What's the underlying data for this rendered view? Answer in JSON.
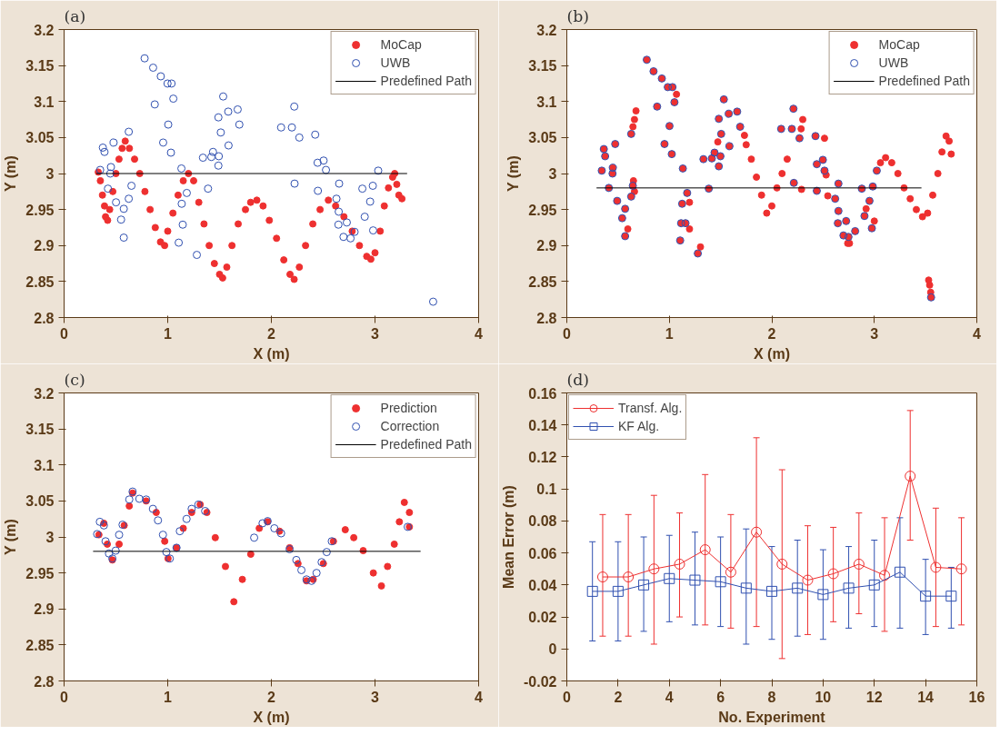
{
  "chart_data": [
    {
      "type": "scatter",
      "title": "(a)",
      "xlabel": "X (m)",
      "ylabel": "Y (m)",
      "xlim": [
        0,
        4
      ],
      "ylim": [
        2.8,
        3.2
      ],
      "xticks": [
        0,
        1,
        2,
        3,
        4
      ],
      "yticks": [
        2.8,
        2.85,
        2.9,
        2.95,
        3,
        3.05,
        3.1,
        3.15,
        3.2
      ],
      "grid": false,
      "legend": "top right",
      "series": [
        {
          "name": "MoCap",
          "color": "#ee3030",
          "marker": "circle",
          "x": [
            0.33,
            0.35,
            0.37,
            0.39,
            0.4,
            0.42,
            0.44,
            0.47,
            0.5,
            0.53,
            0.56,
            0.59,
            0.63,
            0.68,
            0.73,
            0.78,
            0.83,
            0.88,
            0.93,
            0.97,
            1.0,
            1.05,
            1.1,
            1.15,
            1.2,
            1.25,
            1.3,
            1.35,
            1.4,
            1.45,
            1.5,
            1.53,
            1.57,
            1.62,
            1.68,
            1.75,
            1.8,
            1.86,
            1.92,
            1.98,
            2.05,
            2.12,
            2.18,
            2.22,
            2.27,
            2.33,
            2.4,
            2.47,
            2.55,
            2.62,
            2.7,
            2.78,
            2.85,
            2.92,
            2.96,
            3.0,
            3.05,
            3.09,
            3.13,
            3.17,
            3.19,
            3.21,
            3.23,
            3.26
          ],
          "values": [
            3.002,
            2.99,
            2.97,
            2.955,
            2.94,
            2.935,
            2.95,
            2.975,
            3.0,
            3.02,
            3.035,
            3.045,
            3.035,
            3.02,
            3.0,
            2.975,
            2.95,
            2.925,
            2.905,
            2.9,
            2.92,
            2.945,
            2.97,
            2.99,
            3.0,
            2.99,
            2.96,
            2.93,
            2.9,
            2.875,
            2.86,
            2.855,
            2.87,
            2.9,
            2.93,
            2.95,
            2.96,
            2.963,
            2.955,
            2.935,
            2.91,
            2.88,
            2.86,
            2.853,
            2.87,
            2.9,
            2.93,
            2.95,
            2.963,
            2.955,
            2.94,
            2.92,
            2.9,
            2.885,
            2.881,
            2.89,
            2.92,
            2.955,
            2.98,
            2.995,
            3.0,
            2.985,
            2.97,
            2.965
          ]
        },
        {
          "name": "UWB",
          "color": "#3050b0",
          "marker": "circle",
          "x": [
            0.777,
            0.859,
            0.933,
            0.998,
            1.037,
            1.054,
            0.875,
            1.005,
            0.956,
            1.031,
            1.132,
            0.65,
            0.624,
            0.576,
            0.55,
            0.576,
            0.501,
            0.423,
            0.452,
            0.446,
            0.348,
            0.374,
            0.39,
            0.478,
            0.624,
            1.184,
            1.135,
            1.145,
            1.106,
            1.281,
            1.389,
            1.34,
            1.421,
            1.437,
            1.493,
            1.489,
            1.587,
            1.512,
            1.489,
            1.535,
            1.584,
            1.675,
            1.691,
            2.221,
            2.094,
            2.198,
            2.27,
            2.423,
            2.446,
            2.504,
            2.527,
            2.224,
            2.449,
            2.654,
            2.628,
            2.65,
            2.647,
            2.728,
            2.696,
            2.764,
            2.803,
            2.878,
            2.979,
            2.953,
            2.901,
            2.982,
            3.031,
            3.561
          ],
          "values": [
            3.16,
            3.147,
            3.135,
            3.125,
            3.125,
            3.104,
            3.096,
            3.068,
            3.043,
            3.029,
            3.007,
            2.983,
            2.965,
            2.951,
            2.936,
            2.911,
            2.96,
            2.979,
            3.009,
            3.0,
            3.005,
            3.036,
            3.03,
            3.043,
            3.058,
            2.973,
            2.958,
            2.929,
            2.904,
            2.887,
            2.979,
            3.022,
            3.023,
            3.03,
            3.024,
            3.011,
            3.039,
            3.057,
            3.078,
            3.107,
            3.086,
            3.089,
            3.068,
            3.093,
            3.064,
            3.064,
            3.05,
            3.054,
            3.015,
            3.018,
            3.005,
            2.986,
            2.976,
            2.986,
            2.965,
            2.947,
            2.929,
            2.932,
            2.912,
            2.91,
            2.919,
            2.979,
            2.983,
            2.961,
            2.94,
            2.921,
            3.004,
            2.822
          ]
        },
        {
          "name": "Predefined Path",
          "type": "line",
          "color": "#000000",
          "x": [
            0.31,
            3.31
          ],
          "values": [
            3,
            3
          ]
        }
      ]
    },
    {
      "type": "scatter",
      "title": "(b)",
      "xlabel": "X (m)",
      "ylabel": "Y (m)",
      "xlim": [
        0,
        4
      ],
      "ylim": [
        2.8,
        3.2
      ],
      "xticks": [
        0,
        1,
        2,
        3,
        4
      ],
      "yticks": [
        2.8,
        2.85,
        2.9,
        2.95,
        3,
        3.05,
        3.1,
        3.15,
        3.2
      ],
      "grid": false,
      "legend": "top right",
      "series": [
        {
          "name": "MoCap",
          "color": "#ee3030",
          "marker": "circle",
          "x": [
            0.341,
            0.361,
            0.374,
            0.449,
            0.446,
            0.472,
            0.41,
            0.491,
            0.569,
            0.54,
            0.569,
            0.628,
            0.644,
            0.628,
            0.78,
            0.846,
            0.927,
            0.985,
            1.031,
            1.05,
            0.881,
            1.002,
            0.953,
            1.024,
            1.132,
            1.174,
            1.125,
            1.115,
            1.158,
            1.106,
            1.278,
            1.333,
            1.385,
            1.415,
            1.441,
            1.499,
            1.483,
            1.506,
            1.483,
            1.532,
            1.58,
            1.662,
            1.691,
            1.587,
            2.091,
            2.195,
            2.211,
            2.27,
            2.215,
            2.426,
            2.439,
            2.498,
            2.514,
            2.439,
            2.65,
            2.618,
            2.65,
            2.644,
            2.725,
            2.699,
            2.748,
            2.813,
            2.878,
            2.985,
            2.953,
            2.904,
            2.976,
            3.024,
            3.554,
            0.645,
            0.66,
            0.675,
            0.65,
            0.66,
            0.595,
            2.758,
            1.197,
            1.197,
            1.07,
            1.304,
            1.473,
            1.733,
            1.75,
            1.8,
            1.85,
            1.9,
            1.95,
            2.0,
            2.05,
            2.1,
            2.15,
            2.302,
            2.286,
            2.29,
            2.514,
            2.53,
            2.546,
            2.74,
            2.92,
            3.0,
            3.06,
            3.11,
            3.17,
            3.23,
            3.29,
            3.35,
            3.41,
            3.47,
            3.52,
            3.57,
            3.62,
            3.66,
            3.7,
            3.73,
            3.75,
            3.53,
            3.54,
            3.55
          ],
          "values": [
            3.004,
            3.034,
            3.024,
            3.008,
            3.0,
            3.041,
            2.98,
            2.962,
            2.951,
            2.938,
            2.913,
            2.968,
            2.983,
            3.055,
            3.158,
            3.142,
            3.132,
            3.12,
            3.12,
            3.099,
            3.093,
            3.066,
            3.041,
            3.027,
            3.007,
            2.973,
            2.958,
            2.931,
            2.931,
            2.907,
            2.889,
            3.02,
            2.979,
            3.021,
            3.029,
            3.024,
            3.01,
            3.055,
            3.076,
            3.103,
            3.083,
            3.086,
            3.065,
            3.038,
            3.062,
            3.062,
            3.09,
            3.049,
            2.987,
            3.052,
            3.013,
            3.019,
            3.004,
            2.976,
            2.986,
            2.965,
            2.948,
            2.931,
            2.934,
            2.914,
            2.912,
            2.92,
            2.979,
            2.982,
            2.962,
            2.941,
            2.924,
            3.004,
            2.828,
            3.065,
            3.075,
            3.087,
            2.99,
            2.975,
            2.923,
            2.903,
            2.96,
            2.923,
            3.11,
            2.898,
            3.044,
            3.053,
            3.04,
            3.02,
            2.995,
            2.97,
            2.945,
            2.955,
            2.98,
            3.0,
            3.02,
            3.075,
            3.062,
            2.978,
            3.049,
            2.998,
            2.969,
            2.903,
            2.951,
            2.934,
            3.015,
            3.022,
            3.015,
            3.0,
            2.98,
            2.965,
            2.95,
            2.94,
            2.945,
            2.97,
            3.0,
            3.03,
            3.052,
            3.045,
            3.027,
            2.852,
            2.845,
            2.835
          ]
        },
        {
          "name": "UWB",
          "color": "#3050b0",
          "marker": "circle",
          "x": [
            0.341,
            0.361,
            0.374,
            0.449,
            0.446,
            0.472,
            0.41,
            0.491,
            0.569,
            0.54,
            0.569,
            0.628,
            0.644,
            0.628,
            0.78,
            0.846,
            0.927,
            0.985,
            1.031,
            1.05,
            0.881,
            1.002,
            0.953,
            1.024,
            1.132,
            1.174,
            1.125,
            1.115,
            1.158,
            1.106,
            1.278,
            1.333,
            1.385,
            1.415,
            1.441,
            1.499,
            1.483,
            1.506,
            1.483,
            1.532,
            1.58,
            1.662,
            1.691,
            1.587,
            2.091,
            2.195,
            2.211,
            2.27,
            2.215,
            2.426,
            2.439,
            2.498,
            2.514,
            2.439,
            2.65,
            2.618,
            2.65,
            2.644,
            2.725,
            2.699,
            2.748,
            2.813,
            2.878,
            2.985,
            2.953,
            2.904,
            2.976,
            3.024,
            3.554
          ],
          "values": [
            3.004,
            3.034,
            3.024,
            3.008,
            3.0,
            3.041,
            2.98,
            2.962,
            2.951,
            2.938,
            2.913,
            2.968,
            2.983,
            3.055,
            3.158,
            3.142,
            3.132,
            3.12,
            3.12,
            3.099,
            3.093,
            3.066,
            3.041,
            3.027,
            3.007,
            2.973,
            2.958,
            2.931,
            2.931,
            2.907,
            2.889,
            3.02,
            2.979,
            3.021,
            3.029,
            3.024,
            3.01,
            3.055,
            3.076,
            3.103,
            3.083,
            3.086,
            3.065,
            3.038,
            3.062,
            3.062,
            3.09,
            3.049,
            2.987,
            3.052,
            3.013,
            3.019,
            3.004,
            2.976,
            2.986,
            2.965,
            2.948,
            2.931,
            2.934,
            2.914,
            2.912,
            2.92,
            2.979,
            2.982,
            2.962,
            2.941,
            2.924,
            3.004,
            2.828
          ]
        },
        {
          "name": "Predefined Path",
          "type": "line",
          "color": "#000000",
          "x": [
            0.29,
            3.46
          ],
          "values": [
            2.98,
            2.98
          ]
        }
      ]
    },
    {
      "type": "scatter",
      "title": "(c)",
      "xlabel": "X (m)",
      "ylabel": "Y (m)",
      "xlim": [
        0,
        4
      ],
      "ylim": [
        2.8,
        3.2
      ],
      "xticks": [
        0,
        1,
        2,
        3,
        4
      ],
      "yticks": [
        2.8,
        2.85,
        2.9,
        2.95,
        3,
        3.05,
        3.1,
        3.15,
        3.2
      ],
      "grid": false,
      "legend": "top right",
      "series": [
        {
          "name": "Prediction",
          "color": "#ee3030",
          "marker": "circle",
          "x": [
            0.336,
            0.384,
            0.417,
            0.466,
            0.531,
            0.58,
            0.629,
            0.661,
            0.792,
            0.889,
            0.971,
            1.003,
            1.085,
            1.15,
            1.231,
            1.313,
            1.378,
            1.459,
            1.557,
            1.638,
            1.72,
            1.801,
            1.883,
            1.964,
            2.078,
            2.176,
            2.257,
            2.339,
            2.404,
            2.502,
            2.599,
            2.713,
            2.795,
            2.886,
            2.984,
            3.062,
            3.121,
            3.186,
            3.235,
            3.283,
            3.332,
            3.332
          ],
          "values": [
            3.003,
            3.019,
            2.99,
            2.968,
            2.99,
            3.016,
            3.043,
            3.061,
            3.05,
            3.034,
            2.994,
            2.97,
            2.985,
            3.012,
            3.034,
            3.045,
            3.034,
            2.999,
            2.959,
            2.91,
            2.941,
            2.976,
            3.012,
            3.021,
            3.008,
            2.985,
            2.963,
            2.939,
            2.941,
            2.963,
            2.994,
            3.01,
            2.999,
            2.981,
            2.95,
            2.932,
            2.959,
            2.99,
            3.021,
            3.048,
            3.034,
            3.014
          ]
        },
        {
          "name": "Correction",
          "color": "#3050b0",
          "marker": "circle",
          "x": [
            0.319,
            0.345,
            0.384,
            0.4,
            0.433,
            0.466,
            0.498,
            0.531,
            0.564,
            0.629,
            0.661,
            0.726,
            0.792,
            0.857,
            0.906,
            0.954,
            0.987,
            1.02,
            1.085,
            1.117,
            1.182,
            1.231,
            1.296,
            1.361,
            1.834,
            1.915,
            1.964,
            2.029,
            2.094,
            2.176,
            2.241,
            2.29,
            2.339,
            2.388,
            2.436,
            2.485,
            2.534,
            2.583,
            3.316
          ],
          "values": [
            3.004,
            3.021,
            3.016,
            2.994,
            2.977,
            2.97,
            2.981,
            3.003,
            3.017,
            3.052,
            3.063,
            3.053,
            3.052,
            3.039,
            3.023,
            3.003,
            2.979,
            2.97,
            2.985,
            3.008,
            3.025,
            3.039,
            3.045,
            3.036,
            2.999,
            3.019,
            3.022,
            3.012,
            3.005,
            2.983,
            2.968,
            2.954,
            2.941,
            2.939,
            2.95,
            2.965,
            2.979,
            2.994,
            3.014
          ]
        },
        {
          "name": "Predefined Path",
          "type": "line",
          "color": "#000000",
          "x": [
            0.28,
            3.44
          ],
          "values": [
            2.98,
            2.98
          ]
        }
      ]
    },
    {
      "type": "line",
      "title": "(d)",
      "xlabel": "No. Experiment",
      "ylabel": "Mean Error (m)",
      "xlim": [
        0,
        16
      ],
      "ylim": [
        -0.02,
        0.16
      ],
      "xticks": [
        0,
        2,
        4,
        6,
        8,
        10,
        12,
        14,
        16
      ],
      "yticks": [
        -0.02,
        0,
        0.02,
        0.04,
        0.06,
        0.08,
        0.1,
        0.12,
        0.14,
        0.16
      ],
      "grid": false,
      "legend": "top left",
      "series": [
        {
          "name": "Transf. Alg.",
          "color": "#ee3030",
          "marker": "circle",
          "x": [
            1.4,
            2.4,
            3.4,
            4.4,
            5.4,
            6.4,
            7.4,
            8.4,
            9.4,
            10.4,
            11.4,
            12.4,
            13.4,
            14.4,
            15.4
          ],
          "values": [
            0.045,
            0.045,
            0.05,
            0.053,
            0.062,
            0.048,
            0.073,
            0.053,
            0.043,
            0.047,
            0.053,
            0.046,
            0.108,
            0.051,
            0.05
          ],
          "errors": [
            [
              0.008,
              0.084
            ],
            [
              0.008,
              0.084
            ],
            [
              0.003,
              0.096
            ],
            [
              0.02,
              0.085
            ],
            [
              0.015,
              0.109
            ],
            [
              0.013,
              0.084
            ],
            [
              0.014,
              0.132
            ],
            [
              -0.006,
              0.112
            ],
            [
              0.009,
              0.077
            ],
            [
              0.017,
              0.076
            ],
            [
              0.022,
              0.085
            ],
            [
              0.011,
              0.082
            ],
            [
              0.068,
              0.149
            ],
            [
              0.014,
              0.088
            ],
            [
              0.015,
              0.082
            ]
          ]
        },
        {
          "name": "KF Alg.",
          "color": "#3050b0",
          "marker": "square",
          "x": [
            1,
            2,
            3,
            4,
            5,
            6,
            7,
            8,
            9,
            10,
            11,
            12,
            13,
            14,
            15
          ],
          "values": [
            0.036,
            0.036,
            0.04,
            0.044,
            0.043,
            0.042,
            0.038,
            0.036,
            0.038,
            0.034,
            0.038,
            0.04,
            0.048,
            0.033,
            0.033
          ],
          "errors": [
            [
              0.005,
              0.067
            ],
            [
              0.005,
              0.067
            ],
            [
              0.011,
              0.07
            ],
            [
              0.017,
              0.071
            ],
            [
              0.015,
              0.073
            ],
            [
              0.014,
              0.07
            ],
            [
              0.003,
              0.075
            ],
            [
              0.006,
              0.064
            ],
            [
              0.008,
              0.068
            ],
            [
              0.006,
              0.062
            ],
            [
              0.013,
              0.064
            ],
            [
              0.014,
              0.068
            ],
            [
              0.013,
              0.082
            ],
            [
              0.009,
              0.056
            ],
            [
              0.013,
              0.051
            ]
          ]
        }
      ]
    }
  ]
}
